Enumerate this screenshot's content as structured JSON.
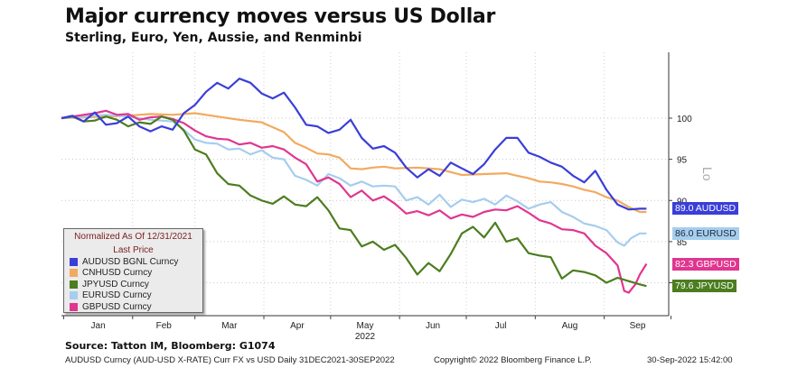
{
  "header": {
    "title": "Major currency moves versus US Dollar",
    "subtitle": "Sterling, Euro, Yen, Aussie, and Renminbi"
  },
  "legend": {
    "heading_line1": "Normalized As Of 12/31/2021",
    "heading_line2": "Last Price"
  },
  "source_text": "Source: Tatton IM, Bloomberg: G1074",
  "footer": {
    "left": "AUDUSD Curncy (AUD-USD X-RATE) Curr FX vs USD  Daily 31DEC2021-30SEP2022",
    "middle": "Copyright© 2022 Bloomberg Finance L.P.",
    "right": "30-Sep-2022 15:42:00"
  },
  "edge_label": "Lo",
  "chart_data": {
    "type": "line",
    "x_months": [
      "Jan",
      "Feb",
      "Mar",
      "Apr",
      "May",
      "Jun",
      "Jul",
      "Aug",
      "Sep"
    ],
    "x_year": "2022",
    "xlim": [
      "2021-12-31",
      "2022-09-30"
    ],
    "ylim": [
      76,
      108
    ],
    "y_ticks": [
      80,
      85,
      90,
      95,
      100
    ],
    "y_tick_labels": [
      "",
      "85",
      "90",
      "95",
      "100"
    ],
    "series": [
      {
        "name": "AUDUSD BGNL Curncy",
        "tag": "89.0 AUDUSD",
        "last": 89.0,
        "color": "#3a3ed8",
        "values": [
          [
            0,
            100
          ],
          [
            5,
            100.3
          ],
          [
            10,
            99.6
          ],
          [
            15,
            100.7
          ],
          [
            20,
            99.2
          ],
          [
            25,
            99.4
          ],
          [
            30,
            100.2
          ],
          [
            35,
            99.0
          ],
          [
            40,
            98.4
          ],
          [
            45,
            99.0
          ],
          [
            50,
            98.6
          ],
          [
            55,
            100.6
          ],
          [
            60,
            101.6
          ],
          [
            65,
            103.2
          ],
          [
            70,
            104.3
          ],
          [
            75,
            103.6
          ],
          [
            80,
            104.8
          ],
          [
            85,
            104.3
          ],
          [
            90,
            103.0
          ],
          [
            95,
            102.4
          ],
          [
            100,
            103.1
          ],
          [
            105,
            101.3
          ],
          [
            110,
            99.2
          ],
          [
            115,
            99.0
          ],
          [
            120,
            98.2
          ],
          [
            125,
            98.6
          ],
          [
            130,
            99.8
          ],
          [
            135,
            97.6
          ],
          [
            140,
            96.3
          ],
          [
            145,
            96.6
          ],
          [
            150,
            95.8
          ],
          [
            155,
            94.0
          ],
          [
            160,
            92.8
          ],
          [
            165,
            93.8
          ],
          [
            170,
            93.0
          ],
          [
            175,
            94.6
          ],
          [
            180,
            93.9
          ],
          [
            185,
            93.2
          ],
          [
            190,
            94.4
          ],
          [
            195,
            96.2
          ],
          [
            200,
            97.6
          ],
          [
            205,
            97.6
          ],
          [
            210,
            95.8
          ],
          [
            215,
            95.3
          ],
          [
            220,
            94.6
          ],
          [
            225,
            94.1
          ],
          [
            230,
            93.0
          ],
          [
            235,
            92.2
          ],
          [
            240,
            93.6
          ],
          [
            245,
            91.3
          ],
          [
            250,
            89.5
          ],
          [
            255,
            88.9
          ],
          [
            260,
            89.0
          ],
          [
            263,
            89.0
          ]
        ]
      },
      {
        "name": "CNHUSD Curncy",
        "tag": "",
        "last": 88.6,
        "color": "#f2aa5e",
        "values": [
          [
            0,
            100
          ],
          [
            10,
            100.1
          ],
          [
            20,
            100.2
          ],
          [
            30,
            100.3
          ],
          [
            40,
            100.5
          ],
          [
            50,
            100.4
          ],
          [
            60,
            100.6
          ],
          [
            70,
            100.2
          ],
          [
            80,
            99.8
          ],
          [
            90,
            99.5
          ],
          [
            100,
            98.3
          ],
          [
            105,
            97.0
          ],
          [
            110,
            96.4
          ],
          [
            115,
            95.7
          ],
          [
            120,
            95.6
          ],
          [
            125,
            95.2
          ],
          [
            130,
            93.9
          ],
          [
            135,
            93.8
          ],
          [
            140,
            94.0
          ],
          [
            145,
            94.1
          ],
          [
            150,
            93.9
          ],
          [
            160,
            94.0
          ],
          [
            170,
            93.8
          ],
          [
            180,
            93.1
          ],
          [
            190,
            93.2
          ],
          [
            200,
            93.3
          ],
          [
            205,
            93.0
          ],
          [
            210,
            92.7
          ],
          [
            215,
            92.3
          ],
          [
            220,
            92.2
          ],
          [
            225,
            92.0
          ],
          [
            230,
            91.7
          ],
          [
            235,
            91.3
          ],
          [
            240,
            91.0
          ],
          [
            245,
            90.4
          ],
          [
            250,
            90.0
          ],
          [
            255,
            89.2
          ],
          [
            260,
            88.6
          ],
          [
            263,
            88.6
          ]
        ]
      },
      {
        "name": "JPYUSD Curncy",
        "tag": "79.6 JPYUSD",
        "last": 79.6,
        "color": "#4c7d1f",
        "values": [
          [
            0,
            100
          ],
          [
            5,
            100.2
          ],
          [
            10,
            99.6
          ],
          [
            15,
            99.7
          ],
          [
            20,
            100.2
          ],
          [
            25,
            99.8
          ],
          [
            30,
            99.0
          ],
          [
            35,
            99.5
          ],
          [
            40,
            99.3
          ],
          [
            45,
            100.2
          ],
          [
            50,
            99.8
          ],
          [
            55,
            98.5
          ],
          [
            60,
            96.2
          ],
          [
            65,
            95.6
          ],
          [
            70,
            93.3
          ],
          [
            75,
            92.0
          ],
          [
            80,
            91.8
          ],
          [
            85,
            90.6
          ],
          [
            90,
            90.0
          ],
          [
            95,
            89.6
          ],
          [
            100,
            90.5
          ],
          [
            105,
            89.5
          ],
          [
            110,
            89.3
          ],
          [
            115,
            90.4
          ],
          [
            120,
            88.8
          ],
          [
            125,
            86.6
          ],
          [
            130,
            86.4
          ],
          [
            135,
            84.4
          ],
          [
            140,
            85.0
          ],
          [
            145,
            84.0
          ],
          [
            150,
            84.6
          ],
          [
            155,
            83.0
          ],
          [
            160,
            81.0
          ],
          [
            165,
            82.4
          ],
          [
            170,
            81.4
          ],
          [
            175,
            83.5
          ],
          [
            180,
            86.0
          ],
          [
            185,
            86.8
          ],
          [
            190,
            85.5
          ],
          [
            195,
            87.3
          ],
          [
            200,
            85.0
          ],
          [
            205,
            85.4
          ],
          [
            210,
            83.6
          ],
          [
            215,
            83.3
          ],
          [
            220,
            83.1
          ],
          [
            225,
            80.5
          ],
          [
            230,
            81.5
          ],
          [
            235,
            81.3
          ],
          [
            240,
            80.9
          ],
          [
            245,
            80.0
          ],
          [
            250,
            80.6
          ],
          [
            255,
            80.2
          ],
          [
            260,
            79.8
          ],
          [
            263,
            79.6
          ]
        ]
      },
      {
        "name": "EURUSD Curncy",
        "tag": "86.0 EURUSD",
        "last": 86.0,
        "color": "#a6cdee",
        "values": [
          [
            0,
            100
          ],
          [
            10,
            100.2
          ],
          [
            20,
            100.4
          ],
          [
            30,
            100.2
          ],
          [
            40,
            99.8
          ],
          [
            50,
            99.6
          ],
          [
            55,
            98.6
          ],
          [
            60,
            97.4
          ],
          [
            65,
            97.0
          ],
          [
            70,
            96.9
          ],
          [
            75,
            96.2
          ],
          [
            80,
            96.3
          ],
          [
            85,
            95.6
          ],
          [
            90,
            96.1
          ],
          [
            95,
            95.2
          ],
          [
            100,
            95.0
          ],
          [
            105,
            93.0
          ],
          [
            110,
            92.5
          ],
          [
            115,
            91.8
          ],
          [
            120,
            93.2
          ],
          [
            125,
            92.7
          ],
          [
            130,
            91.8
          ],
          [
            135,
            92.3
          ],
          [
            140,
            91.7
          ],
          [
            145,
            91.8
          ],
          [
            150,
            91.7
          ],
          [
            155,
            90.0
          ],
          [
            160,
            90.4
          ],
          [
            165,
            89.5
          ],
          [
            170,
            90.7
          ],
          [
            175,
            89.2
          ],
          [
            180,
            90.1
          ],
          [
            185,
            89.8
          ],
          [
            190,
            90.2
          ],
          [
            195,
            89.5
          ],
          [
            200,
            90.6
          ],
          [
            205,
            89.9
          ],
          [
            210,
            89.0
          ],
          [
            215,
            89.5
          ],
          [
            220,
            89.8
          ],
          [
            225,
            88.6
          ],
          [
            230,
            88.0
          ],
          [
            235,
            87.2
          ],
          [
            240,
            86.9
          ],
          [
            245,
            86.4
          ],
          [
            250,
            84.9
          ],
          [
            253,
            84.5
          ],
          [
            256,
            85.4
          ],
          [
            260,
            86.0
          ],
          [
            263,
            86.0
          ]
        ]
      },
      {
        "name": "GBPUSD Curncy",
        "tag": "82.3 GBPUSD",
        "last": 82.3,
        "color": "#e0368f",
        "values": [
          [
            0,
            100
          ],
          [
            5,
            100.2
          ],
          [
            10,
            100.4
          ],
          [
            15,
            100.6
          ],
          [
            20,
            100.9
          ],
          [
            25,
            100.4
          ],
          [
            30,
            100.5
          ],
          [
            35,
            99.8
          ],
          [
            40,
            100.1
          ],
          [
            45,
            100.2
          ],
          [
            50,
            99.9
          ],
          [
            55,
            99.4
          ],
          [
            60,
            98.5
          ],
          [
            65,
            97.8
          ],
          [
            70,
            97.5
          ],
          [
            75,
            97.4
          ],
          [
            80,
            96.8
          ],
          [
            85,
            97.0
          ],
          [
            90,
            96.4
          ],
          [
            95,
            96.6
          ],
          [
            100,
            96.2
          ],
          [
            105,
            95.2
          ],
          [
            110,
            94.4
          ],
          [
            115,
            92.3
          ],
          [
            120,
            92.8
          ],
          [
            125,
            92.0
          ],
          [
            130,
            90.4
          ],
          [
            135,
            91.2
          ],
          [
            140,
            90.0
          ],
          [
            145,
            90.5
          ],
          [
            150,
            89.6
          ],
          [
            155,
            88.4
          ],
          [
            160,
            88.7
          ],
          [
            165,
            88.2
          ],
          [
            170,
            88.8
          ],
          [
            175,
            87.8
          ],
          [
            180,
            88.3
          ],
          [
            185,
            88.0
          ],
          [
            190,
            88.6
          ],
          [
            195,
            88.9
          ],
          [
            200,
            88.8
          ],
          [
            205,
            89.3
          ],
          [
            210,
            88.5
          ],
          [
            215,
            87.6
          ],
          [
            220,
            87.2
          ],
          [
            225,
            86.5
          ],
          [
            230,
            86.4
          ],
          [
            235,
            86.0
          ],
          [
            240,
            84.5
          ],
          [
            245,
            83.6
          ],
          [
            250,
            82.1
          ],
          [
            253,
            79.0
          ],
          [
            255,
            78.8
          ],
          [
            258,
            79.8
          ],
          [
            260,
            81.0
          ],
          [
            263,
            82.3
          ]
        ]
      }
    ]
  }
}
